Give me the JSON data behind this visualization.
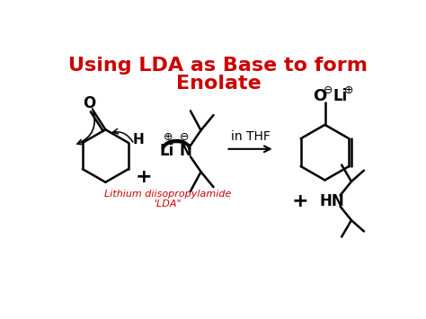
{
  "title_line1": "Using LDA as Base to form",
  "title_line2": "Enolate",
  "title_color": "#cc0000",
  "title_fontsize": 16,
  "bg_color": "#ffffff",
  "reaction_label": "in THF",
  "lda_label_line1": "Lithium diisopropylamide",
  "lda_label_line2": "'LDA\"",
  "lda_label_color": "#cc0000",
  "line_color": "#000000",
  "line_width": 1.8
}
